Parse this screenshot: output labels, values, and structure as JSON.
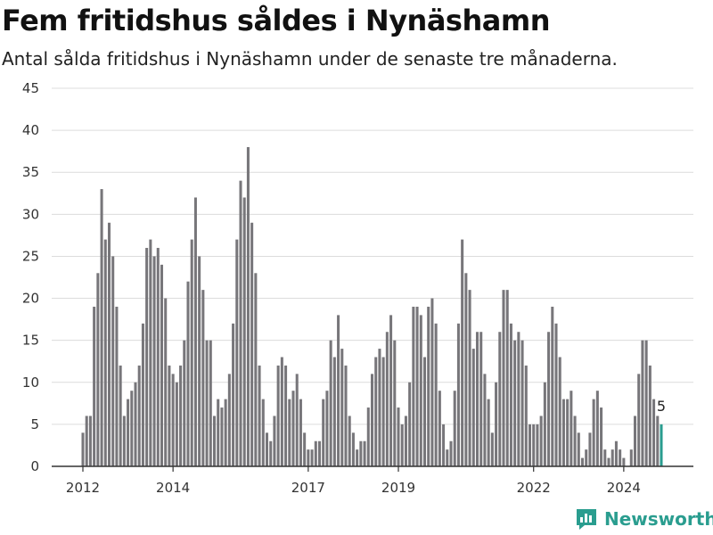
{
  "header": {
    "title": "Fem fritidshus såldes i Nynäshamn",
    "subtitle": "Antal sålda fritidshus i Nynäshamn under de senaste tre månaderna."
  },
  "brand": {
    "name": "Newsworthy",
    "icon": "bar-chart-logo-icon",
    "color": "#2a9d8f"
  },
  "chart_data": {
    "type": "bar",
    "title": "Fem fritidshus såldes i Nynäshamn",
    "subtitle": "Antal sålda fritidshus i Nynäshamn under de senaste tre månaderna.",
    "xlabel": "",
    "ylabel": "",
    "ylim": [
      0,
      45
    ],
    "yticks": [
      "0",
      "5",
      "10",
      "15",
      "20",
      "25",
      "30",
      "35",
      "40",
      "45"
    ],
    "xticks": [
      {
        "label": "2012",
        "index": 0
      },
      {
        "label": "2014",
        "index": 24
      },
      {
        "label": "2017",
        "index": 60
      },
      {
        "label": "2019",
        "index": 84
      },
      {
        "label": "2022",
        "index": 120
      },
      {
        "label": "2024",
        "index": 144
      }
    ],
    "grid": true,
    "legend": "none",
    "bar_color": "#77767a",
    "highlight_color": "#2a9d8f",
    "highlight_label": "5",
    "series": [
      {
        "values": [
          4,
          6,
          6,
          19,
          23,
          33,
          27,
          29,
          25,
          19,
          12,
          6,
          8,
          9,
          10,
          12,
          17,
          26,
          27,
          25,
          26,
          24,
          20,
          12,
          11,
          10,
          12,
          15,
          22,
          27,
          32,
          25,
          21,
          15,
          15,
          6,
          8,
          7,
          8,
          11,
          17,
          27,
          34,
          32,
          38,
          29,
          23,
          12,
          8,
          4,
          3,
          6,
          12,
          13,
          12,
          8,
          9,
          11,
          8,
          4,
          2,
          2,
          3,
          3,
          8,
          9,
          15,
          13,
          18,
          14,
          12,
          6,
          4,
          2,
          3,
          3,
          7,
          11,
          13,
          14,
          13,
          16,
          18,
          15,
          7,
          5,
          6,
          10,
          19,
          19,
          18,
          13,
          19,
          20,
          17,
          9,
          5,
          2,
          3,
          9,
          17,
          27,
          23,
          21,
          14,
          16,
          16,
          11,
          8,
          4,
          10,
          16,
          21,
          21,
          17,
          15,
          16,
          15,
          12,
          5,
          5,
          5,
          6,
          10,
          16,
          19,
          17,
          13,
          8,
          8,
          9,
          6,
          4,
          1,
          2,
          4,
          8,
          9,
          7,
          2,
          1,
          2,
          3,
          2,
          1,
          0,
          2,
          6,
          11,
          15,
          15,
          12,
          8,
          6,
          5
        ]
      }
    ]
  }
}
